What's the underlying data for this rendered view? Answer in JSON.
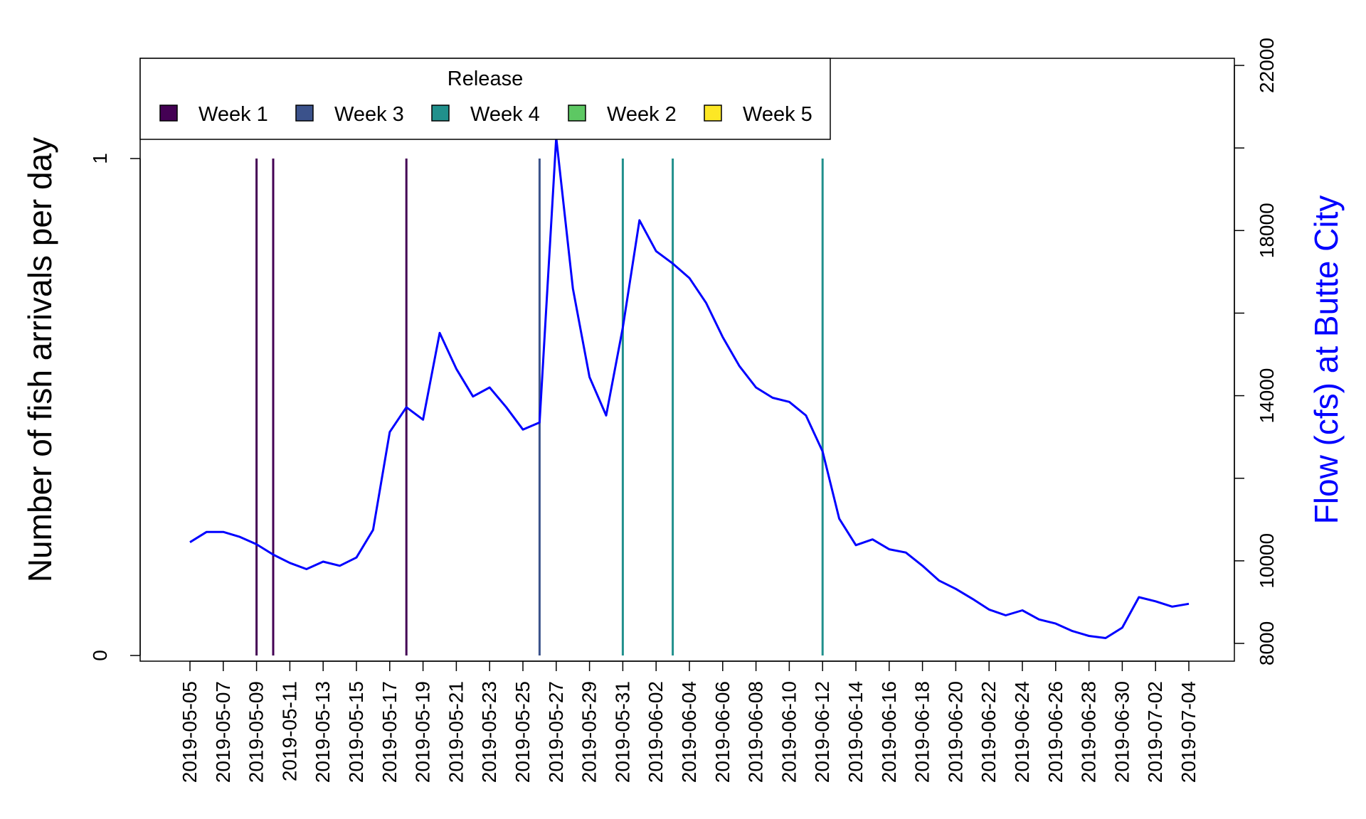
{
  "chart_data": {
    "type": "line",
    "ylabel": "Number of fish arrivals per day",
    "y2label": "Flow (cfs) at Butte City",
    "ylim": [
      0,
      1
    ],
    "y_ticks": [
      "0",
      "1"
    ],
    "y2lim": [
      8000,
      22000
    ],
    "y2_ticks": [
      "8000",
      "10000",
      "14000",
      "18000",
      "22000"
    ],
    "x_ticks": [
      "2019-05-05",
      "2019-05-07",
      "2019-05-09",
      "2019-05-11",
      "2019-05-13",
      "2019-05-15",
      "2019-05-17",
      "2019-05-19",
      "2019-05-21",
      "2019-05-23",
      "2019-05-25",
      "2019-05-27",
      "2019-05-29",
      "2019-05-31",
      "2019-06-02",
      "2019-06-04",
      "2019-06-06",
      "2019-06-08",
      "2019-06-10",
      "2019-06-12",
      "2019-06-14",
      "2019-06-16",
      "2019-06-18",
      "2019-06-20",
      "2019-06-22",
      "2019-06-24",
      "2019-06-26",
      "2019-06-28",
      "2019-06-30",
      "2019-07-02",
      "2019-07-04"
    ],
    "grid": false,
    "legend": {
      "title": "Release",
      "position": "top-left",
      "entries": [
        {
          "label": "Week 1",
          "color": "#440154"
        },
        {
          "label": "Week 3",
          "color": "#3B528B"
        },
        {
          "label": "Week 4",
          "color": "#21908C"
        },
        {
          "label": "Week 2",
          "color": "#5DC863"
        },
        {
          "label": "Week 5",
          "color": "#FDE725"
        }
      ]
    },
    "arrivals": [
      {
        "date": "2019-05-09",
        "count": 1,
        "release": "Week 1",
        "color": "#440154"
      },
      {
        "date": "2019-05-10",
        "count": 1,
        "release": "Week 1",
        "color": "#440154"
      },
      {
        "date": "2019-05-18",
        "count": 1,
        "release": "Week 1",
        "color": "#440154"
      },
      {
        "date": "2019-05-26",
        "count": 1,
        "release": "Week 3",
        "color": "#3B528B"
      },
      {
        "date": "2019-05-31",
        "count": 1,
        "release": "Week 4",
        "color": "#21908C"
      },
      {
        "date": "2019-06-03",
        "count": 1,
        "release": "Week 4",
        "color": "#21908C"
      },
      {
        "date": "2019-06-12",
        "count": 1,
        "release": "Week 4",
        "color": "#21908C"
      }
    ],
    "flow_series": {
      "color": "#0000FF",
      "dates": [
        "2019-05-05",
        "2019-05-06",
        "2019-05-07",
        "2019-05-08",
        "2019-05-09",
        "2019-05-10",
        "2019-05-11",
        "2019-05-12",
        "2019-05-13",
        "2019-05-14",
        "2019-05-15",
        "2019-05-16",
        "2019-05-17",
        "2019-05-18",
        "2019-05-19",
        "2019-05-20",
        "2019-05-21",
        "2019-05-22",
        "2019-05-23",
        "2019-05-24",
        "2019-05-25",
        "2019-05-26",
        "2019-05-27",
        "2019-05-28",
        "2019-05-29",
        "2019-05-30",
        "2019-05-31",
        "2019-06-01",
        "2019-06-02",
        "2019-06-03",
        "2019-06-04",
        "2019-06-05",
        "2019-06-06",
        "2019-06-07",
        "2019-06-08",
        "2019-06-09",
        "2019-06-10",
        "2019-06-11",
        "2019-06-12",
        "2019-06-13",
        "2019-06-14",
        "2019-06-15",
        "2019-06-16",
        "2019-06-17",
        "2019-06-18",
        "2019-06-19",
        "2019-06-20",
        "2019-06-21",
        "2019-06-22",
        "2019-06-23",
        "2019-06-24",
        "2019-06-25",
        "2019-06-26",
        "2019-06-27",
        "2019-06-28",
        "2019-06-29",
        "2019-06-30",
        "2019-07-01",
        "2019-07-02",
        "2019-07-03",
        "2019-07-04"
      ],
      "values": [
        10450,
        10700,
        10700,
        10580,
        10400,
        10150,
        9950,
        9800,
        9980,
        9880,
        10080,
        10750,
        13120,
        13720,
        13420,
        15520,
        14650,
        13980,
        14200,
        13720,
        13180,
        13350,
        20250,
        16600,
        14450,
        13520,
        15650,
        18250,
        17500,
        17200,
        16850,
        16250,
        15420,
        14720,
        14200,
        13950,
        13850,
        13520,
        12650,
        11020,
        10380,
        10520,
        10280,
        10200,
        9880,
        9520,
        9320,
        9080,
        8820,
        8680,
        8800,
        8580,
        8480,
        8300,
        8180,
        8130,
        8380,
        9120,
        9020,
        8890,
        8960
      ]
    }
  }
}
